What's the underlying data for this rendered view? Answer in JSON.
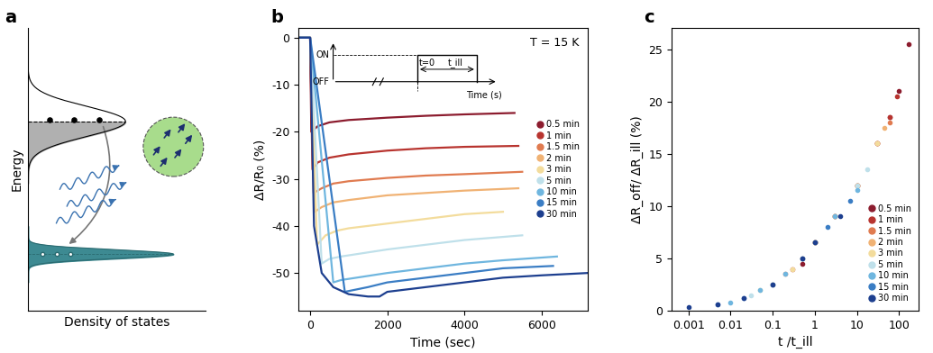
{
  "chart_data": [
    {
      "type": "diagram",
      "title": "a",
      "xlabel": "Density of states",
      "ylabel": "Energy",
      "tick_labels": false
    },
    {
      "type": "line",
      "title": "b",
      "xlabel": "Time (sec)",
      "ylabel": "ΔR/R₀ (%)",
      "xlim": [
        -300,
        7200
      ],
      "xticks": [
        0,
        2000,
        4000,
        6000
      ],
      "ylim": [
        -58,
        2
      ],
      "yticks": [
        -50,
        -40,
        -30,
        -20,
        -10,
        0
      ],
      "annotations": [
        "T = 15 K"
      ],
      "inset": {
        "y_labels": [
          "ON",
          "OFF"
        ],
        "texts": [
          "t=0",
          "t_ill",
          "Time (s)"
        ]
      },
      "legend": "center right",
      "series": [
        {
          "name": "0.5 min",
          "color": "#8c1c2e",
          "x": [
            -300,
            0,
            30,
            200,
            500,
            1000,
            2000,
            3000,
            4000,
            5300
          ],
          "values": [
            0,
            0,
            -20,
            -18.8,
            -18,
            -17.5,
            -17,
            -16.6,
            -16.3,
            -16
          ]
        },
        {
          "name": "1 min",
          "color": "#b8342f",
          "x": [
            -300,
            0,
            60,
            200,
            500,
            1000,
            2000,
            3000,
            4000,
            5400
          ],
          "values": [
            0,
            0,
            -28,
            -26.5,
            -25.5,
            -24.8,
            -24,
            -23.5,
            -23.2,
            -23
          ]
        },
        {
          "name": "1.5 min",
          "color": "#e07b50",
          "x": [
            -300,
            0,
            90,
            300,
            600,
            1000,
            2000,
            3000,
            4000,
            5500
          ],
          "values": [
            0,
            0,
            -33,
            -32,
            -31,
            -30.5,
            -29.8,
            -29.3,
            -29,
            -28.5
          ]
        },
        {
          "name": "2 min",
          "color": "#f0b274",
          "x": [
            -300,
            0,
            120,
            300,
            600,
            1000,
            2000,
            3000,
            4000,
            5400
          ],
          "values": [
            0,
            0,
            -37,
            -36,
            -35,
            -34.5,
            -33.5,
            -33,
            -32.5,
            -32
          ]
        },
        {
          "name": "3 min",
          "color": "#f3dc9c",
          "x": [
            -300,
            0,
            180,
            400,
            700,
            1000,
            2000,
            3000,
            4000,
            5000
          ],
          "values": [
            0,
            0,
            -44,
            -42,
            -41,
            -40.5,
            -39.5,
            -38.5,
            -37.5,
            -37
          ]
        },
        {
          "name": "5 min",
          "color": "#bfe0ea",
          "x": [
            -300,
            0,
            300,
            500,
            800,
            1200,
            2000,
            3000,
            4000,
            5500
          ],
          "values": [
            0,
            0,
            -48,
            -47,
            -46.5,
            -46,
            -45,
            -44,
            -43,
            -42
          ]
        },
        {
          "name": "10 min",
          "color": "#6fb6df",
          "x": [
            -300,
            0,
            600,
            800,
            1200,
            2000,
            3000,
            4000,
            5000,
            6400
          ],
          "values": [
            0,
            0,
            -52,
            -51.5,
            -51,
            -50,
            -49,
            -48,
            -47.3,
            -46.5
          ]
        },
        {
          "name": "15 min",
          "color": "#3a7dc4",
          "x": [
            -300,
            0,
            900,
            1200,
            1500,
            2000,
            3000,
            4000,
            5000,
            6300
          ],
          "values": [
            0,
            0,
            -54,
            -53.5,
            -53,
            -52,
            -51,
            -50,
            -49,
            -48.5
          ]
        },
        {
          "name": "30 min",
          "color": "#1d3f8f",
          "x": [
            -300,
            0,
            100,
            300,
            600,
            1000,
            1500,
            1800,
            2000,
            3000,
            4000,
            5000,
            6000,
            7200
          ],
          "values": [
            0,
            0,
            -40,
            -50,
            -53,
            -54.5,
            -55,
            -55,
            -54,
            -53,
            -52,
            -51,
            -50.5,
            -50
          ]
        }
      ]
    },
    {
      "type": "scatter",
      "title": "c",
      "xlabel": "t /t_ill",
      "ylabel": "ΔR_off/ ΔR_ill (%)",
      "log": "x",
      "xlim": [
        0.0004,
        300
      ],
      "xticks": [
        0.001,
        0.01,
        0.1,
        1,
        10,
        100
      ],
      "ylim": [
        0,
        27
      ],
      "yticks": [
        0,
        5,
        10,
        15,
        20,
        25
      ],
      "legend": "lower right",
      "series": [
        {
          "name": "0.5 min",
          "color": "#8c1c2e",
          "x": [
            0.5,
            1,
            3,
            10,
            30,
            60,
            100,
            170
          ],
          "values": [
            4.5,
            6.5,
            9,
            12,
            16,
            18.5,
            21,
            25.5
          ]
        },
        {
          "name": "1 min",
          "color": "#b8342f",
          "x": [
            0.3,
            1,
            3,
            10,
            30,
            60,
            90
          ],
          "values": [
            4,
            6.5,
            9,
            12,
            16,
            18.5,
            20.5
          ]
        },
        {
          "name": "1.5 min",
          "color": "#e07b50",
          "x": [
            0.2,
            1,
            3,
            10,
            30,
            60
          ],
          "values": [
            3.5,
            6.5,
            9,
            12,
            16,
            18
          ]
        },
        {
          "name": "2 min",
          "color": "#f0b274",
          "x": [
            0.1,
            0.5,
            1,
            3,
            10,
            30,
            45
          ],
          "values": [
            2.5,
            5,
            6.5,
            9,
            12,
            16,
            17.5
          ]
        },
        {
          "name": "3 min",
          "color": "#f3dc9c",
          "x": [
            0.05,
            0.3,
            1,
            3,
            10,
            30
          ],
          "values": [
            2,
            4,
            6.5,
            9,
            12,
            16
          ]
        },
        {
          "name": "5 min",
          "color": "#bfe0ea",
          "x": [
            0.03,
            0.1,
            0.5,
            1,
            3,
            10,
            18
          ],
          "values": [
            1.5,
            2.5,
            5,
            6.5,
            9,
            12,
            13.5
          ]
        },
        {
          "name": "10 min",
          "color": "#6fb6df",
          "x": [
            0.01,
            0.05,
            0.2,
            1,
            3,
            10
          ],
          "values": [
            0.8,
            2,
            3.5,
            6.5,
            9,
            11.5
          ]
        },
        {
          "name": "15 min",
          "color": "#3a7dc4",
          "x": [
            0.005,
            0.02,
            0.1,
            0.5,
            2,
            7
          ],
          "values": [
            0.6,
            1.2,
            2.5,
            5,
            8,
            10.5
          ]
        },
        {
          "name": "30 min",
          "color": "#1d3f8f",
          "x": [
            0.001,
            0.005,
            0.02,
            0.1,
            0.5,
            1,
            4
          ],
          "values": [
            0.3,
            0.6,
            1.2,
            2.5,
            5,
            6.5,
            9
          ]
        }
      ]
    }
  ]
}
